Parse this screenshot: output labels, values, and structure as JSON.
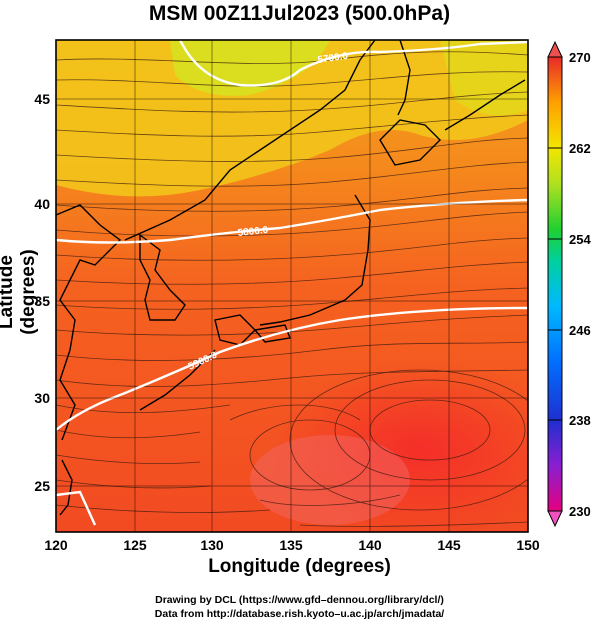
{
  "title": "MSM 00Z11Jul2023 (500.0hPa)",
  "axes": {
    "xlabel": "Longitude (degrees)",
    "ylabel": "Latitude  (degrees)",
    "x_ticks": [
      "120",
      "125",
      "130",
      "135",
      "140",
      "145",
      "150"
    ],
    "y_ticks": [
      "45",
      "40",
      "35",
      "30",
      "25"
    ],
    "xlim": [
      120,
      150
    ],
    "ylim": [
      22.5,
      47.6
    ]
  },
  "colorbar": {
    "ticks": [
      "270",
      "262",
      "254",
      "246",
      "238",
      "230"
    ],
    "range": [
      230,
      270
    ],
    "colors": [
      "#e5007f",
      "#8a1fd0",
      "#1f2fd0",
      "#00a8ff",
      "#00d0b0",
      "#1fd030",
      "#c0e020",
      "#f2e600",
      "#ffa000",
      "#ff4a1f",
      "#e82a2a"
    ]
  },
  "contours": [
    {
      "label": "5700.0"
    },
    {
      "label": "5800.0"
    },
    {
      "label": "5900.0"
    }
  ],
  "credits": {
    "line1": "Drawing by DCL (https://www.gfd–dennou.org/library/dcl/)",
    "line2": "Data from http://database.rish.kyoto–u.ac.jp/arch/jmadata/"
  }
}
